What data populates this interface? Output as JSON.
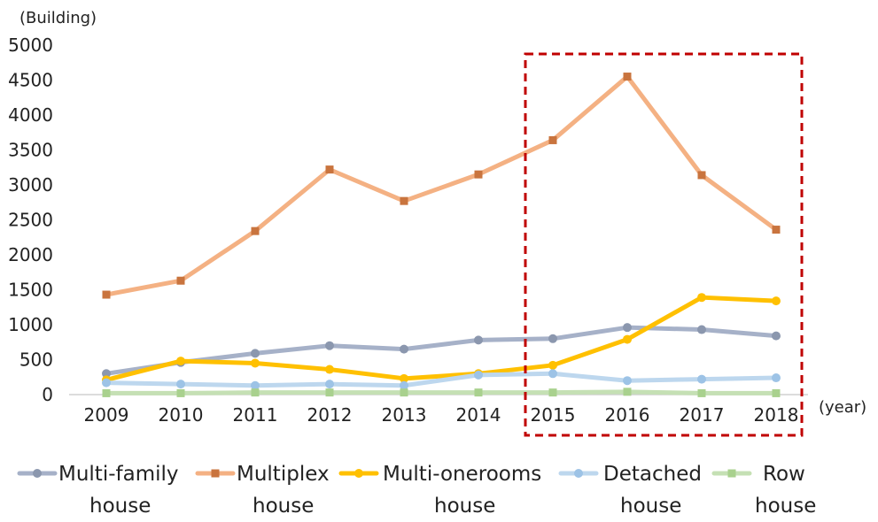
{
  "chart_data": {
    "type": "line",
    "ylabel": "(Building)",
    "xlabel": "(year)",
    "ylim": [
      0,
      5000
    ],
    "yticks": [
      "0",
      "500",
      "1000",
      "1500",
      "2000",
      "2500",
      "3000",
      "3500",
      "4000",
      "4500",
      "5000"
    ],
    "categories": [
      "2009",
      "2010",
      "2011",
      "2012",
      "2013",
      "2014",
      "2015",
      "2016",
      "2017",
      "2018"
    ],
    "highlight_range": [
      "2015",
      "2018"
    ],
    "series": [
      {
        "name": "Multi-family house",
        "label_line1": "Multi-family",
        "label_line2": "house",
        "color": "#A6B1C8",
        "marker_color": "#8B97AE",
        "marker": "circle",
        "values": [
          300,
          460,
          590,
          700,
          650,
          780,
          800,
          960,
          930,
          840
        ]
      },
      {
        "name": "Multiplex house",
        "label_line1": "Multiplex",
        "label_line2": "house",
        "color": "#F4B183",
        "marker_color": "#C9743E",
        "marker": "square",
        "values": [
          1430,
          1630,
          2340,
          3220,
          2770,
          3150,
          3640,
          4550,
          3140,
          2360
        ]
      },
      {
        "name": "Multi-onerooms house",
        "label_line1": "Multi-onerooms",
        "label_line2": "house",
        "color": "#FFC000",
        "marker_color": "#FFC000",
        "marker": "circle",
        "values": [
          210,
          480,
          450,
          360,
          230,
          300,
          420,
          790,
          1390,
          1340
        ]
      },
      {
        "name": "Detached house",
        "label_line1": "Detached",
        "label_line2": "house",
        "color": "#BDD7EE",
        "marker_color": "#9DC3E6",
        "marker": "circle",
        "values": [
          170,
          150,
          130,
          150,
          130,
          280,
          300,
          200,
          220,
          240
        ]
      },
      {
        "name": "Row house",
        "label_line1": "Row",
        "label_line2": "house",
        "color": "#C5E0B4",
        "marker_color": "#A9D18E",
        "marker": "square",
        "values": [
          20,
          20,
          30,
          30,
          30,
          30,
          30,
          40,
          20,
          20
        ]
      }
    ]
  }
}
